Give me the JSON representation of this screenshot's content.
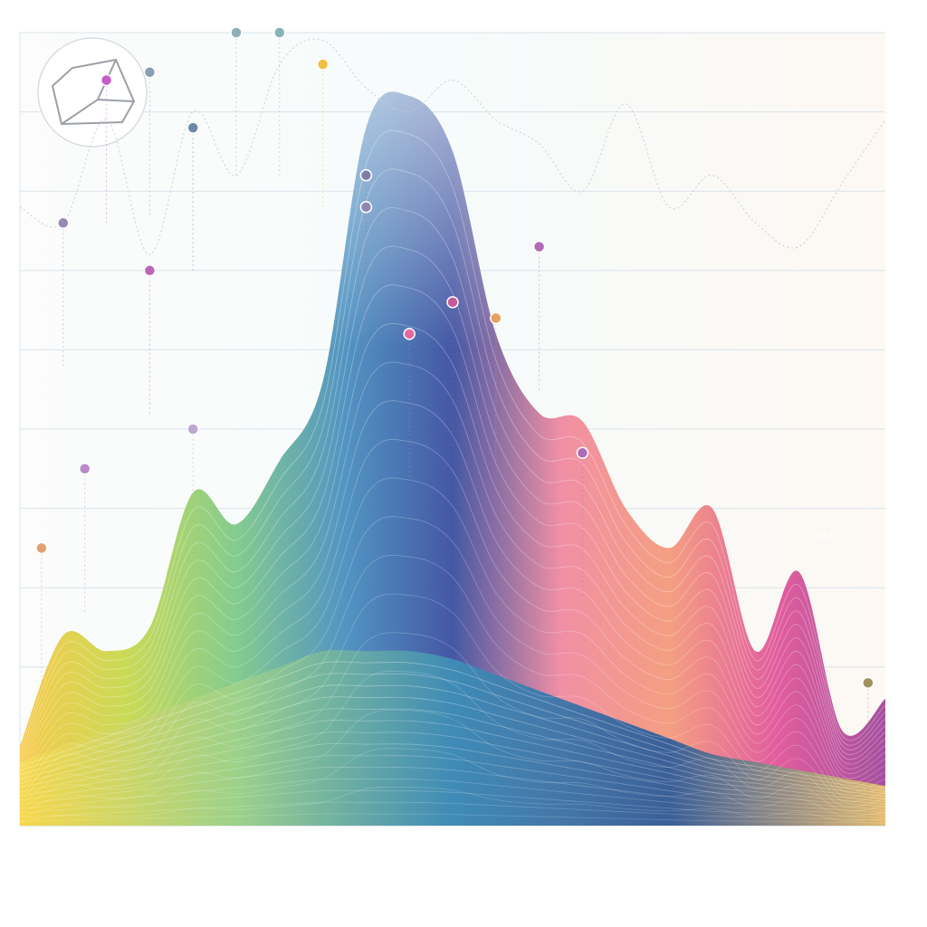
{
  "chart_data": {
    "type": "area",
    "title": "",
    "xlabel": "",
    "ylabel": "",
    "x": [
      0,
      1,
      2,
      3,
      4,
      5,
      6,
      7,
      8,
      9,
      10,
      11,
      12,
      13,
      14,
      15,
      16,
      17,
      18,
      19,
      20
    ],
    "ylim": [
      0,
      100
    ],
    "grid": true,
    "series": [
      {
        "values": [
          10,
          24,
          22,
          25,
          42,
          38,
          46,
          56,
          88,
          92,
          85,
          62,
          52,
          51,
          40,
          35,
          40,
          22,
          32,
          12,
          16
        ],
        "colors": [
          "#f7c843",
          "#c6d94f",
          "#7ec98a",
          "#4a8fc0",
          "#3b4fa0",
          "#f08aa0",
          "#f49a7c",
          "#e0559a",
          "#a0479a"
        ]
      },
      {
        "values": [
          8,
          10,
          12,
          14,
          16,
          18,
          20,
          22,
          22,
          22,
          21,
          19,
          17,
          15,
          13,
          11,
          9,
          8,
          7,
          6,
          5
        ],
        "colors": [
          "#f7d84a",
          "#9fd28a",
          "#3f8fb8",
          "#2b5a9a",
          "#e8c36a"
        ]
      }
    ],
    "upper_line": {
      "values": [
        78,
        76,
        89,
        72,
        90,
        82,
        96,
        99,
        93,
        90,
        94,
        89,
        86,
        80,
        91,
        78,
        82,
        76,
        73,
        81,
        89
      ]
    },
    "markers": [
      {
        "x": 1,
        "y": 76,
        "color": "#9b87b8"
      },
      {
        "x": 2,
        "y": 94,
        "color": "#c95bc9"
      },
      {
        "x": 3,
        "y": 70,
        "color": "#b966b9"
      },
      {
        "x": 3,
        "y": 95,
        "color": "#8aa0b0"
      },
      {
        "x": 4,
        "y": 88,
        "color": "#6d8aa4"
      },
      {
        "x": 4,
        "y": 50,
        "color": "#b9a8d0"
      },
      {
        "x": 5,
        "y": 100,
        "color": "#8fb0b8"
      },
      {
        "x": 6,
        "y": 100,
        "color": "#86b4b4"
      },
      {
        "x": 7,
        "y": 96,
        "color": "#f2c040"
      },
      {
        "x": 8,
        "y": 82,
        "color": "#7d7fa8"
      },
      {
        "x": 8,
        "y": 78,
        "color": "#8c86b0"
      },
      {
        "x": 9,
        "y": 62,
        "color": "#e06aa0"
      },
      {
        "x": 10,
        "y": 66,
        "color": "#c45a9c"
      },
      {
        "x": 11,
        "y": 64,
        "color": "#e8a060"
      },
      {
        "x": 12,
        "y": 73,
        "color": "#b06ab8"
      },
      {
        "x": 13,
        "y": 47,
        "color": "#b06ab8"
      },
      {
        "x": 0.5,
        "y": 35,
        "color": "#e3a070"
      },
      {
        "x": 1.5,
        "y": 45,
        "color": "#b58bc8"
      },
      {
        "x": 19.6,
        "y": 18,
        "color": "#a09060"
      }
    ],
    "annotations": [
      {
        "x": 18.6,
        "y": 36,
        "label": "241"
      }
    ]
  }
}
